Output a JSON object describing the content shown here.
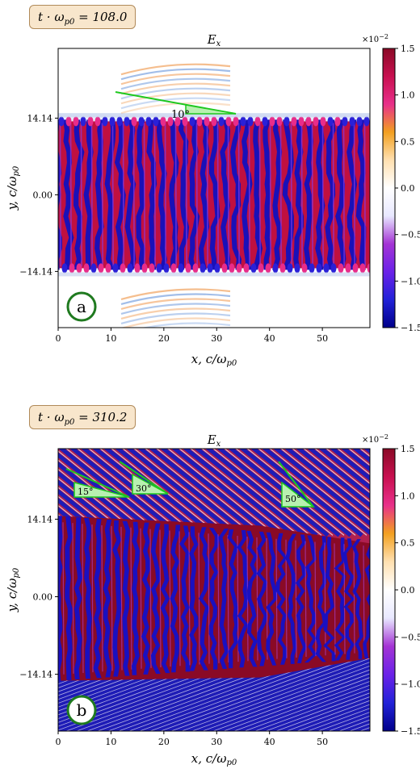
{
  "chart_data": [
    {
      "type": "heatmap",
      "panel_label": "a",
      "time_label": "t · ω",
      "time_sub": "p0",
      "time_value": " = 108.0",
      "title": "E",
      "title_sub": "x",
      "xlabel": "x, c/ω",
      "xlabel_sub": "p0",
      "ylabel": "y, c/ω",
      "ylabel_sub": "p0",
      "xlim": [
        0,
        59
      ],
      "ylim": [
        -24.5,
        27
      ],
      "xticks": [
        "0",
        "10",
        "20",
        "30",
        "40",
        "50"
      ],
      "yticks": [
        "14.14",
        "0.00",
        "−14.14"
      ],
      "ytick_values": [
        14.14,
        0,
        -14.14
      ],
      "colorbar_ticks": [
        "1.5",
        "1.0",
        "0.5",
        "0.0",
        "−0.5",
        "−1.0",
        "−1.5"
      ],
      "colorbar_values": [
        1.5,
        1.0,
        0.5,
        0.0,
        -0.5,
        -1.0,
        -1.5
      ],
      "colorbar_scale": "×10",
      "colorbar_exp": "−2",
      "annotations": [
        {
          "text": "10°",
          "angle_deg": 10
        }
      ],
      "colormap": [
        "#00008a",
        "#2222d8",
        "#6b22e8",
        "#a434d4",
        "#e8e8ff",
        "#ffffff",
        "#ffe0b0",
        "#f2a020",
        "#e8308a",
        "#c81050",
        "#8a0a26"
      ]
    },
    {
      "type": "heatmap",
      "panel_label": "b",
      "time_label": "t · ω",
      "time_sub": "p0",
      "time_value": " = 310.2",
      "title": "E",
      "title_sub": "x",
      "xlabel": "x, c/ω",
      "xlabel_sub": "p0",
      "ylabel": "y, c/ω",
      "ylabel_sub": "p0",
      "xlim": [
        0,
        59
      ],
      "ylim": [
        -24.5,
        27
      ],
      "xticks": [
        "0",
        "10",
        "20",
        "30",
        "40",
        "50"
      ],
      "yticks": [
        "14.14",
        "0.00",
        "−14.14"
      ],
      "ytick_values": [
        14.14,
        0,
        -14.14
      ],
      "colorbar_ticks": [
        "1.5",
        "1.0",
        "0.5",
        "0.0",
        "−0.5",
        "−1.0",
        "−1.5"
      ],
      "colorbar_values": [
        1.5,
        1.0,
        0.5,
        0.0,
        -0.5,
        -1.0,
        -1.5
      ],
      "colorbar_scale": "×10",
      "colorbar_exp": "−2",
      "annotations": [
        {
          "text": "15°",
          "angle_deg": 15
        },
        {
          "text": "30°",
          "angle_deg": 30
        },
        {
          "text": "50°",
          "angle_deg": 50
        }
      ],
      "colormap": [
        "#00008a",
        "#2222d8",
        "#6b22e8",
        "#a434d4",
        "#e8e8ff",
        "#ffffff",
        "#ffe0b0",
        "#f2a020",
        "#e8308a",
        "#c81050",
        "#8a0a26"
      ]
    }
  ]
}
